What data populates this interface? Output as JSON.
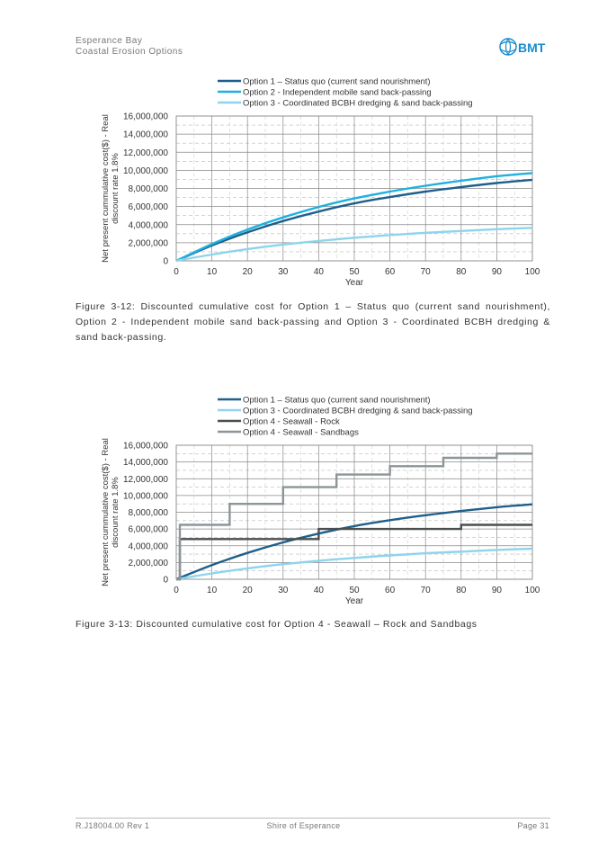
{
  "header": {
    "line1": "Esperance Bay",
    "line2": "Coastal Erosion Options",
    "logo_text": "BMT"
  },
  "charts": [
    {
      "caption": "Figure 3-12: Discounted cumulative cost for Option 1 – Status quo (current sand nourishment), Option 2 - Independent mobile sand back-passing and Option 3 - Coordinated BCBH dredging & sand back-passing.",
      "chart_data": {
        "type": "line",
        "xlabel": "Year",
        "ylabel": "Net present cummulative cost($) - Real discount rate 1.8%",
        "ylabel_line1": "Net present cummulative cost($) - Real",
        "ylabel_line2": "discount rate 1.8%",
        "xlim": [
          0,
          100
        ],
        "ylim": [
          0,
          16000000
        ],
        "xticks": [
          0,
          10,
          20,
          30,
          40,
          50,
          60,
          70,
          80,
          90,
          100
        ],
        "xtick_labels": [
          "0",
          "10",
          "20",
          "30",
          "40",
          "50",
          "60",
          "70",
          "80",
          "90",
          "100"
        ],
        "yticks": [
          0,
          2000000,
          4000000,
          6000000,
          8000000,
          10000000,
          12000000,
          14000000,
          16000000
        ],
        "ytick_labels": [
          "0",
          "2,000,000",
          "4,000,000",
          "6,000,000",
          "8,000,000",
          "10,000,000",
          "12,000,000",
          "14,000,000",
          "16,000,000"
        ],
        "legend_position": "top",
        "series": [
          {
            "name": "Option 1 – Status quo (current sand nourishment)",
            "color": "#1f5f8b",
            "step": false,
            "x": [
              0,
              10,
              20,
              30,
              40,
              50,
              60,
              70,
              80,
              90,
              100
            ],
            "y": [
              0,
              1700000,
              3150000,
              4400000,
              5450000,
              6350000,
              7050000,
              7650000,
              8150000,
              8600000,
              8950000
            ]
          },
          {
            "name": "Option 2 - Independent mobile sand back-passing",
            "color": "#1eb0e0",
            "step": false,
            "x": [
              0,
              10,
              20,
              30,
              40,
              50,
              60,
              70,
              80,
              90,
              100
            ],
            "y": [
              0,
              1850000,
              3450000,
              4800000,
              5950000,
              6900000,
              7650000,
              8300000,
              8850000,
              9350000,
              9700000
            ]
          },
          {
            "name": "Option 3 - Coordinated BCBH dredging & sand back-passing",
            "color": "#8dd4ec",
            "step": false,
            "x": [
              0,
              10,
              20,
              30,
              40,
              50,
              60,
              70,
              80,
              90,
              100
            ],
            "y": [
              0,
              700000,
              1300000,
              1800000,
              2200000,
              2550000,
              2850000,
              3100000,
              3300000,
              3500000,
              3650000
            ]
          }
        ]
      }
    },
    {
      "caption": "Figure 3-13: Discounted cumulative cost for Option 4 - Seawall – Rock and Sandbags",
      "chart_data": {
        "type": "line",
        "xlabel": "Year",
        "ylabel": "Net present cummulative cost($) - Real discount rate 1.8%",
        "ylabel_line1": "Net present cummulative cost($) - Real",
        "ylabel_line2": "discount rate 1.8%",
        "xlim": [
          0,
          100
        ],
        "ylim": [
          0,
          16000000
        ],
        "xticks": [
          0,
          10,
          20,
          30,
          40,
          50,
          60,
          70,
          80,
          90,
          100
        ],
        "xtick_labels": [
          "0",
          "10",
          "20",
          "30",
          "40",
          "50",
          "60",
          "70",
          "80",
          "90",
          "100"
        ],
        "yticks": [
          0,
          2000000,
          4000000,
          6000000,
          8000000,
          10000000,
          12000000,
          14000000,
          16000000
        ],
        "ytick_labels": [
          "0",
          "2,000,000",
          "4,000,000",
          "6,000,000",
          "8,000,000",
          "10,000,000",
          "12,000,000",
          "14,000,000",
          "16,000,000"
        ],
        "legend_position": "top",
        "series": [
          {
            "name": "Option 1 – Status quo (current sand nourishment)",
            "color": "#1f5f8b",
            "step": false,
            "x": [
              0,
              10,
              20,
              30,
              40,
              50,
              60,
              70,
              80,
              90,
              100
            ],
            "y": [
              0,
              1700000,
              3150000,
              4400000,
              5450000,
              6350000,
              7050000,
              7650000,
              8150000,
              8600000,
              8950000
            ]
          },
          {
            "name": "Option 3 - Coordinated BCBH dredging & sand back-passing",
            "color": "#8dd4ec",
            "step": false,
            "x": [
              0,
              10,
              20,
              30,
              40,
              50,
              60,
              70,
              80,
              90,
              100
            ],
            "y": [
              0,
              700000,
              1300000,
              1800000,
              2200000,
              2550000,
              2850000,
              3100000,
              3300000,
              3500000,
              3650000
            ]
          },
          {
            "name": "Option 4 - Seawall - Rock",
            "color": "#4a4f52",
            "step": true,
            "x": [
              0,
              1,
              40,
              80,
              100
            ],
            "y": [
              0,
              4800000,
              6000000,
              6500000,
              6500000
            ]
          },
          {
            "name": "Option 4 - Seawall - Sandbags",
            "color": "#8c9598",
            "step": true,
            "x": [
              0,
              1,
              15,
              30,
              45,
              60,
              75,
              90,
              100
            ],
            "y": [
              0,
              6500000,
              9000000,
              11000000,
              12500000,
              13500000,
              14500000,
              15000000,
              15000000
            ]
          }
        ]
      }
    }
  ],
  "footer": {
    "left": "R.J18004.00 Rev 1",
    "center": "Shire of Esperance",
    "right": "Page 31"
  }
}
